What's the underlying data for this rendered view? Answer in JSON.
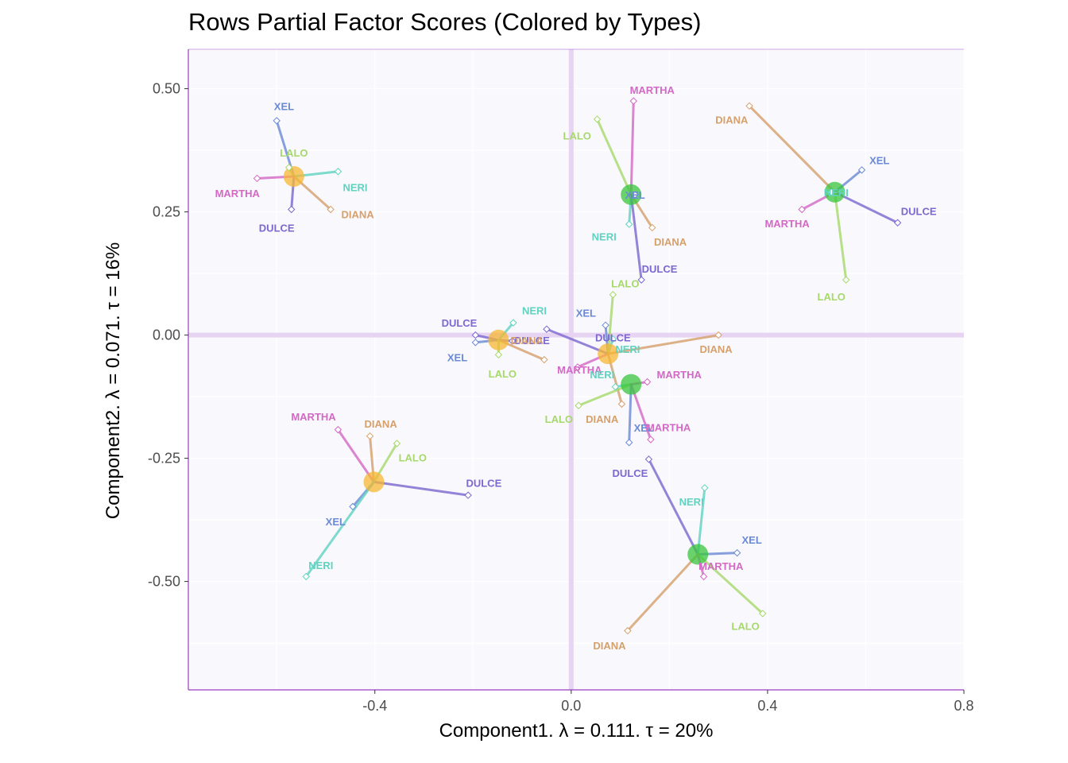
{
  "chart_data": {
    "type": "scatter",
    "title": "Rows Partial Factor Scores (Colored by Types)",
    "xlabel": "Component1.   λ = 0.111.  τ = 20%",
    "ylabel": "Component2.   λ = 0.071.  τ = 16%",
    "xlim": [
      -0.78,
      0.8
    ],
    "ylim": [
      -0.72,
      0.58
    ],
    "x_ticks": [
      -0.4,
      0.0,
      0.4,
      0.8
    ],
    "x_tick_labels": [
      "-0.4",
      "0.0",
      "0.4",
      "0.8"
    ],
    "y_ticks": [
      0.5,
      0.25,
      0.0,
      -0.25,
      -0.5
    ],
    "y_tick_labels": [
      "0.50",
      "0.25",
      "0.00",
      "-0.25",
      "-0.50"
    ],
    "grid": true,
    "colors": {
      "panel_background": "#f9f8fd",
      "axis_line": "#9b3dc2",
      "origin_line": "#e7d4f3",
      "group_orange": "#f7b733",
      "group_green": "#38c63c",
      "XEL": "#6b8ad6",
      "LALO": "#a6d96a",
      "MARTHA": "#d468c5",
      "DIANA": "#d6a06b",
      "DULCE": "#7c68cf",
      "NERI": "#5fd3c0"
    },
    "groups": [
      {
        "name": "Orange 1",
        "color": "group_orange",
        "center": [
          -0.565,
          0.322
        ],
        "partials": [
          {
            "label": "XEL",
            "x": -0.6,
            "y": 0.435,
            "lx": -0.585,
            "ly": 0.465
          },
          {
            "label": "LALO",
            "x": -0.575,
            "y": 0.34,
            "lx": -0.565,
            "ly": 0.37
          },
          {
            "label": "NERI",
            "x": -0.475,
            "y": 0.332,
            "lx": -0.44,
            "ly": 0.3
          },
          {
            "label": "MARTHA",
            "x": -0.64,
            "y": 0.318,
            "lx": -0.68,
            "ly": 0.288
          },
          {
            "label": "DULCE",
            "x": -0.57,
            "y": 0.255,
            "lx": -0.6,
            "ly": 0.218
          },
          {
            "label": "DIANA",
            "x": -0.49,
            "y": 0.255,
            "lx": -0.435,
            "ly": 0.245
          }
        ]
      },
      {
        "name": "Orange 2",
        "color": "group_orange",
        "center": [
          -0.148,
          -0.01
        ],
        "partials": [
          {
            "label": "DULCE",
            "x": -0.195,
            "y": 0.0,
            "lx": -0.228,
            "ly": 0.025
          },
          {
            "label": "NERI",
            "x": -0.118,
            "y": 0.025,
            "lx": -0.075,
            "ly": 0.05
          },
          {
            "label": "XEL",
            "x": -0.195,
            "y": -0.015,
            "lx": -0.232,
            "ly": -0.045
          },
          {
            "label": "DULCE",
            "x": -0.12,
            "y": -0.012,
            "lx": -0.08,
            "ly": -0.01
          },
          {
            "label": "DIANA",
            "x": -0.055,
            "y": -0.05,
            "lx": -0.09,
            "ly": -0.01
          },
          {
            "label": "LALO",
            "x": -0.148,
            "y": -0.04,
            "lx": -0.14,
            "ly": -0.078
          }
        ]
      },
      {
        "name": "Orange 3",
        "color": "group_orange",
        "center": [
          0.075,
          -0.038
        ],
        "partials": [
          {
            "label": "XEL",
            "x": 0.07,
            "y": 0.02,
            "lx": 0.03,
            "ly": 0.045
          },
          {
            "label": "DULCE",
            "x": -0.05,
            "y": 0.012,
            "lx": 0.085,
            "ly": -0.005
          },
          {
            "label": "NERI",
            "x": 0.085,
            "y": -0.008,
            "lx": 0.115,
            "ly": -0.028
          },
          {
            "label": "LALO",
            "x": 0.085,
            "y": 0.082,
            "lx": 0.11,
            "ly": 0.105
          },
          {
            "label": "DIANA",
            "x": 0.3,
            "y": 0.0,
            "lx": 0.295,
            "ly": -0.028
          },
          {
            "label": "MARTHA",
            "x": 0.013,
            "y": -0.065,
            "lx": 0.017,
            "ly": -0.07
          },
          {
            "label": "DIANA",
            "x": 0.103,
            "y": -0.14,
            "lx": 0.063,
            "ly": -0.17
          }
        ]
      },
      {
        "name": "Green 1",
        "color": "group_green",
        "center": [
          0.122,
          0.285
        ],
        "partials": [
          {
            "label": "MARTHA",
            "x": 0.127,
            "y": 0.475,
            "lx": 0.165,
            "ly": 0.498
          },
          {
            "label": "LALO",
            "x": 0.053,
            "y": 0.438,
            "lx": 0.012,
            "ly": 0.405
          },
          {
            "label": "XEL",
            "x": 0.13,
            "y": 0.285,
            "lx": 0.13,
            "ly": 0.285
          },
          {
            "label": "NERI",
            "x": 0.118,
            "y": 0.225,
            "lx": 0.067,
            "ly": 0.2
          },
          {
            "label": "DIANA",
            "x": 0.165,
            "y": 0.218,
            "lx": 0.202,
            "ly": 0.19
          },
          {
            "label": "DULCE",
            "x": 0.143,
            "y": 0.112,
            "lx": 0.18,
            "ly": 0.135
          }
        ]
      },
      {
        "name": "Green 2",
        "color": "group_green",
        "center": [
          0.537,
          0.29
        ],
        "partials": [
          {
            "label": "DIANA",
            "x": 0.363,
            "y": 0.465,
            "lx": 0.327,
            "ly": 0.437
          },
          {
            "label": "XEL",
            "x": 0.592,
            "y": 0.335,
            "lx": 0.628,
            "ly": 0.355
          },
          {
            "label": "NERI",
            "x": 0.53,
            "y": 0.29,
            "lx": 0.54,
            "ly": 0.29
          },
          {
            "label": "MARTHA",
            "x": 0.47,
            "y": 0.255,
            "lx": 0.44,
            "ly": 0.227
          },
          {
            "label": "DULCE",
            "x": 0.665,
            "y": 0.228,
            "lx": 0.708,
            "ly": 0.252
          },
          {
            "label": "LALO",
            "x": 0.56,
            "y": 0.112,
            "lx": 0.53,
            "ly": 0.078
          }
        ]
      },
      {
        "name": "Green 3",
        "color": "group_green",
        "center": [
          0.122,
          -0.1
        ],
        "partials": [
          {
            "label": "MARTHA",
            "x": 0.155,
            "y": -0.095,
            "lx": 0.22,
            "ly": -0.08
          },
          {
            "label": "NERI",
            "x": 0.09,
            "y": -0.105,
            "lx": 0.063,
            "ly": -0.08
          },
          {
            "label": "LALO",
            "x": 0.015,
            "y": -0.143,
            "lx": -0.025,
            "ly": -0.17
          },
          {
            "label": "XEL",
            "x": 0.118,
            "y": -0.218,
            "lx": 0.148,
            "ly": -0.188
          },
          {
            "label": "MARTHA",
            "x": 0.162,
            "y": -0.212,
            "lx": 0.198,
            "ly": -0.187
          }
        ]
      },
      {
        "name": "Orange 4",
        "color": "group_orange",
        "center": [
          -0.402,
          -0.298
        ],
        "partials": [
          {
            "label": "MARTHA",
            "x": -0.475,
            "y": -0.192,
            "lx": -0.525,
            "ly": -0.165
          },
          {
            "label": "DIANA",
            "x": -0.41,
            "y": -0.205,
            "lx": -0.388,
            "ly": -0.18
          },
          {
            "label": "LALO",
            "x": -0.355,
            "y": -0.22,
            "lx": -0.323,
            "ly": -0.248
          },
          {
            "label": "DULCE",
            "x": -0.21,
            "y": -0.325,
            "lx": -0.178,
            "ly": -0.3
          },
          {
            "label": "XEL",
            "x": -0.445,
            "y": -0.348,
            "lx": -0.48,
            "ly": -0.378
          },
          {
            "label": "NERI",
            "x": -0.54,
            "y": -0.49,
            "lx": -0.51,
            "ly": -0.467
          }
        ]
      },
      {
        "name": "Green 4",
        "color": "group_green",
        "center": [
          0.258,
          -0.445
        ],
        "partials": [
          {
            "label": "DULCE",
            "x": 0.158,
            "y": -0.252,
            "lx": 0.12,
            "ly": -0.28
          },
          {
            "label": "NERI",
            "x": 0.272,
            "y": -0.31,
            "lx": 0.245,
            "ly": -0.338
          },
          {
            "label": "XEL",
            "x": 0.338,
            "y": -0.442,
            "lx": 0.368,
            "ly": -0.415
          },
          {
            "label": "MARTHA",
            "x": 0.27,
            "y": -0.49,
            "lx": 0.305,
            "ly": -0.468
          },
          {
            "label": "LALO",
            "x": 0.39,
            "y": -0.565,
            "lx": 0.355,
            "ly": -0.59
          },
          {
            "label": "DIANA",
            "x": 0.115,
            "y": -0.6,
            "lx": 0.078,
            "ly": -0.63
          }
        ]
      }
    ]
  }
}
